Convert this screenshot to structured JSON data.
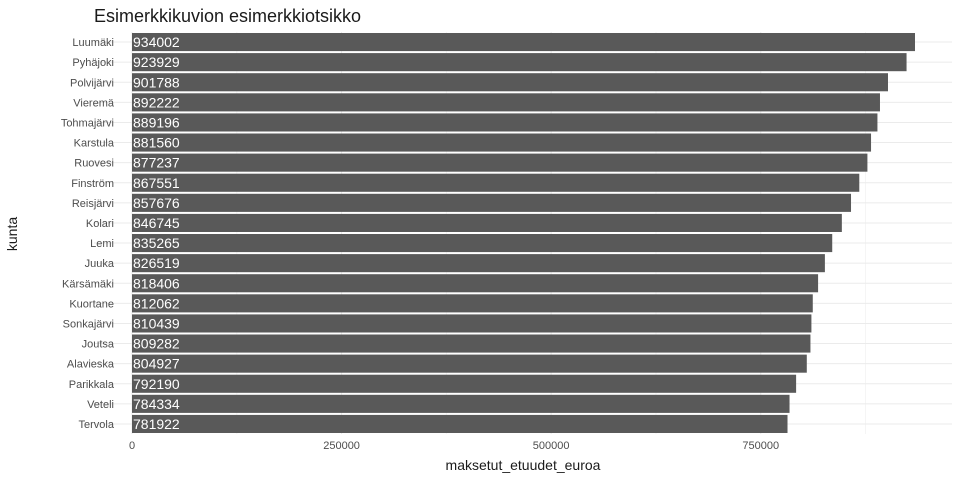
{
  "chart_data": {
    "type": "bar",
    "orientation": "horizontal",
    "title": "Esimerkkikuvion esimerkkiotsikko",
    "xlabel": "maksetut_etuudet_euroa",
    "ylabel": "kunta",
    "xlim": [
      0,
      980000
    ],
    "x_ticks": [
      0,
      250000,
      500000,
      750000
    ],
    "x_tick_labels": [
      "0",
      "250000",
      "500000",
      "750000"
    ],
    "grid": true,
    "legend": "none",
    "bar_color": "#595959",
    "label_color": "#ffffff",
    "categories": [
      "Luumäki",
      "Pyhäjoki",
      "Polvijärvi",
      "Vieremä",
      "Tohmajärvi",
      "Karstula",
      "Ruovesi",
      "Finström",
      "Reisjärvi",
      "Kolari",
      "Lemi",
      "Juuka",
      "Kärsämäki",
      "Kuortane",
      "Sonkajärvi",
      "Joutsa",
      "Alavieska",
      "Parikkala",
      "Veteli",
      "Tervola"
    ],
    "values": [
      934002,
      923929,
      901788,
      892222,
      889196,
      881560,
      877237,
      867551,
      857676,
      846745,
      835265,
      826519,
      818406,
      812062,
      810439,
      809282,
      804927,
      792190,
      784334,
      781922
    ],
    "data_labels": [
      "934002",
      "923929",
      "901788",
      "892222",
      "889196",
      "881560",
      "877237",
      "867551",
      "857676",
      "846745",
      "835265",
      "826519",
      "818406",
      "812062",
      "810439",
      "809282",
      "804927",
      "792190",
      "784334",
      "781922"
    ]
  }
}
